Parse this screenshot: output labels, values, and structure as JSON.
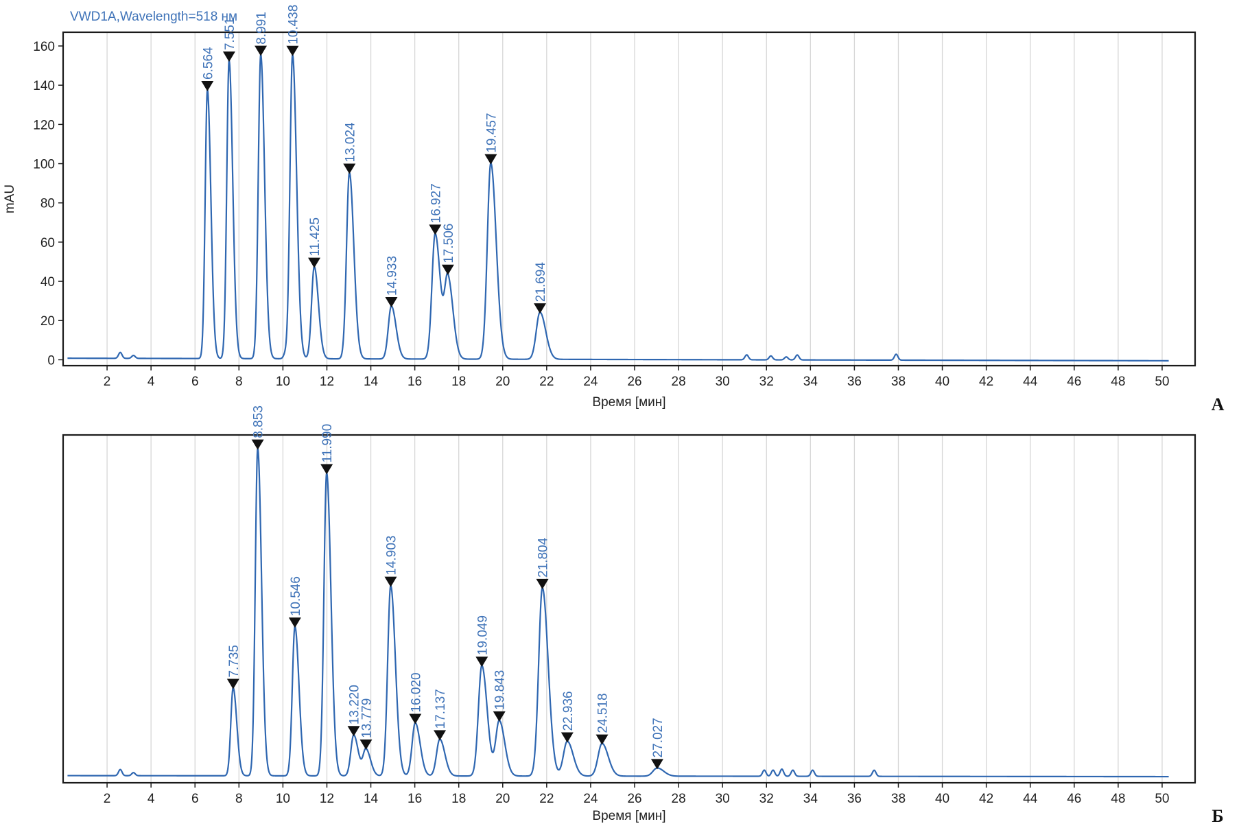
{
  "colors": {
    "trace": "#2f67b1",
    "label": "#3f73b8",
    "grid": "#d6d6d6",
    "frame": "#1a1a1a",
    "marker": "#111111"
  },
  "chart_data": [
    {
      "panel_letter": "А",
      "type": "line",
      "title": "VWD1A,Wavelength=518 нм",
      "xlabel": "Время [мин]",
      "ylabel": "mAU",
      "xlim": [
        0,
        51.5
      ],
      "ylim": [
        -3,
        167
      ],
      "xticks": [
        2,
        4,
        6,
        8,
        10,
        12,
        14,
        16,
        18,
        20,
        22,
        24,
        26,
        28,
        30,
        32,
        34,
        36,
        38,
        40,
        42,
        44,
        46,
        48,
        50
      ],
      "yticks": [
        0,
        20,
        40,
        60,
        80,
        100,
        120,
        140,
        160
      ],
      "show_yticks": true,
      "grid": "vertical",
      "baseline": {
        "start": 0.8,
        "end": -0.5
      },
      "peaks": [
        {
          "rt": 6.564,
          "height": 137,
          "label": "6.564"
        },
        {
          "rt": 7.551,
          "height": 152,
          "label": "7.551"
        },
        {
          "rt": 8.991,
          "height": 155,
          "label": "8.991"
        },
        {
          "rt": 10.438,
          "height": 155,
          "label": "10.438"
        },
        {
          "rt": 11.425,
          "height": 47,
          "label": "11.425"
        },
        {
          "rt": 13.024,
          "height": 95,
          "label": "13.024"
        },
        {
          "rt": 14.933,
          "height": 27,
          "label": "14.933"
        },
        {
          "rt": 16.927,
          "height": 64,
          "label": "16.927"
        },
        {
          "rt": 17.506,
          "height": 41,
          "label": "17.506"
        },
        {
          "rt": 19.457,
          "height": 100,
          "label": "19.457"
        },
        {
          "rt": 21.694,
          "height": 24,
          "label": "21.694"
        }
      ],
      "minor_bumps": [
        {
          "rt": 2.6,
          "height": 3
        },
        {
          "rt": 3.2,
          "height": 1.5
        },
        {
          "rt": 10.1,
          "height": 2
        },
        {
          "rt": 31.1,
          "height": 2.5
        },
        {
          "rt": 32.2,
          "height": 2
        },
        {
          "rt": 32.9,
          "height": 1.5
        },
        {
          "rt": 33.4,
          "height": 2.5
        },
        {
          "rt": 37.9,
          "height": 3
        }
      ]
    },
    {
      "panel_letter": "Б",
      "type": "line",
      "title": "",
      "xlabel": "Время [мин]",
      "ylabel": "",
      "xlim": [
        0,
        51.5
      ],
      "ylim": [
        -3,
        167
      ],
      "xticks": [
        2,
        4,
        6,
        8,
        10,
        12,
        14,
        16,
        18,
        20,
        22,
        24,
        26,
        28,
        30,
        32,
        34,
        36,
        38,
        40,
        42,
        44,
        46,
        48,
        50
      ],
      "yticks": [],
      "show_yticks": false,
      "grid": "vertical",
      "baseline": {
        "start": 0.5,
        "end": 0
      },
      "peaks": [
        {
          "rt": 7.735,
          "height": 43,
          "label": "7.735"
        },
        {
          "rt": 8.853,
          "height": 160,
          "label": "8.853"
        },
        {
          "rt": 10.546,
          "height": 73,
          "label": "10.546"
        },
        {
          "rt": 11.99,
          "height": 148,
          "label": "11.990"
        },
        {
          "rt": 13.22,
          "height": 20,
          "label": "13.220"
        },
        {
          "rt": 13.779,
          "height": 13,
          "label": "13.779"
        },
        {
          "rt": 14.903,
          "height": 93,
          "label": "14.903"
        },
        {
          "rt": 16.02,
          "height": 26,
          "label": "16.020"
        },
        {
          "rt": 17.137,
          "height": 18,
          "label": "17.137"
        },
        {
          "rt": 19.049,
          "height": 54,
          "label": "19.049"
        },
        {
          "rt": 19.843,
          "height": 27,
          "label": "19.843"
        },
        {
          "rt": 21.804,
          "height": 92,
          "label": "21.804"
        },
        {
          "rt": 22.936,
          "height": 17,
          "label": "22.936"
        },
        {
          "rt": 24.518,
          "height": 16,
          "label": "24.518"
        },
        {
          "rt": 27.027,
          "height": 4,
          "label": "27.027"
        }
      ],
      "minor_bumps": [
        {
          "rt": 2.6,
          "height": 3
        },
        {
          "rt": 3.2,
          "height": 1.5
        },
        {
          "rt": 31.9,
          "height": 3
        },
        {
          "rt": 32.3,
          "height": 3
        },
        {
          "rt": 32.7,
          "height": 3.5
        },
        {
          "rt": 33.2,
          "height": 3
        },
        {
          "rt": 34.1,
          "height": 3
        },
        {
          "rt": 36.9,
          "height": 3
        }
      ]
    }
  ]
}
